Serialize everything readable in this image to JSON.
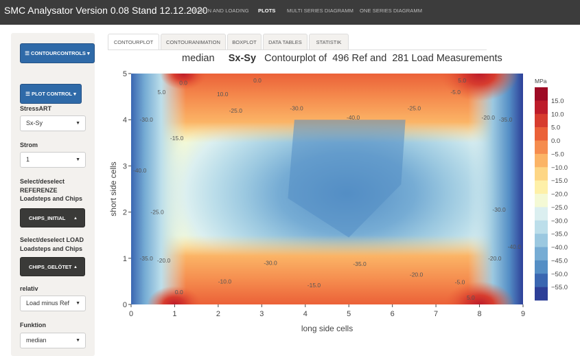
{
  "app": {
    "title": "SMC Analysator Version 0.08 Stand 12.12.2020",
    "nav": [
      "READ IN AND LOADING",
      "PLOTS",
      "MULTI SERIES DIAGRAMM",
      "ONE SERIES DIAGRAMM"
    ],
    "active_nav": "PLOTS"
  },
  "sidebar": {
    "contour_controls_label": "CONTOURCONTROLS",
    "plot_control_label": "PLOT CONTROL",
    "stressart_label": "StressART",
    "stressart_value": "Sx-Sy",
    "strom_label": "Strom",
    "strom_value": "1",
    "ref_label_1": "Select/deselect",
    "ref_label_2": "REFERENZE",
    "ref_label_3": "Loadsteps and Chips",
    "chips_initial_label": "CHIPS_INITIAL",
    "load_label_1": "Select/deselect LOAD",
    "load_label_2": "Loadsteps and Chips",
    "chips_geloetet_label": "CHIPS_GELÖTET",
    "relativ_label": "relativ",
    "relativ_value": "Load minus Ref",
    "funktion_label": "Funktion",
    "funktion_value": "median"
  },
  "tabs": [
    "CONTOURPLOT",
    "CONTOURANIMATION",
    "BOXPLOT",
    "DATA TABLES",
    "STATISTIK"
  ],
  "active_tab": "CONTOURPLOT",
  "plot": {
    "title_pre": "median",
    "title_bold": "Sx-Sy",
    "title_post": "Contourplot of  496 Ref and  281 Load Measurements"
  },
  "chart_data": {
    "type": "heatmap",
    "subtype": "contour",
    "title": "median   Sx-Sy   Contourplot of  496 Ref and  281 Load Measurements",
    "xlabel": "long side cells",
    "ylabel": "short side cells",
    "xlim": [
      0,
      9
    ],
    "ylim": [
      0,
      5
    ],
    "x_ticks": [
      0,
      1,
      2,
      3,
      4,
      5,
      6,
      7,
      8,
      9
    ],
    "y_ticks": [
      0,
      1,
      2,
      3,
      4,
      5
    ],
    "colorbar": {
      "unit": "MPa",
      "ticks": [
        15,
        10,
        5,
        0,
        -5,
        -10,
        -15,
        -20,
        -25,
        -30,
        -35,
        -40,
        -45,
        -50,
        -55
      ],
      "tick_labels": [
        "15.0",
        "10.0",
        "5.0",
        "0.0",
        "−5.0",
        "−10.0",
        "−15.0",
        "−20.0",
        "−25.0",
        "−30.0",
        "−35.0",
        "−40.0",
        "−45.0",
        "−50.0",
        "−55.0"
      ],
      "levels": [
        {
          "from": 15,
          "to": 20,
          "color": "#9e0b25"
        },
        {
          "from": 10,
          "to": 15,
          "color": "#bd1c2a"
        },
        {
          "from": 5,
          "to": 10,
          "color": "#d73c2e"
        },
        {
          "from": 0,
          "to": 5,
          "color": "#eb6138"
        },
        {
          "from": -5,
          "to": 0,
          "color": "#f58c4e"
        },
        {
          "from": -10,
          "to": -5,
          "color": "#fbb466"
        },
        {
          "from": -15,
          "to": -10,
          "color": "#fdd685"
        },
        {
          "from": -20,
          "to": -15,
          "color": "#fef0a8"
        },
        {
          "from": -25,
          "to": -20,
          "color": "#f4f9d5"
        },
        {
          "from": -30,
          "to": -25,
          "color": "#dbeff0"
        },
        {
          "from": -35,
          "to": -30,
          "color": "#bcdeea"
        },
        {
          "from": -40,
          "to": -35,
          "color": "#9bc8e0"
        },
        {
          "from": -45,
          "to": -40,
          "color": "#76acd4"
        },
        {
          "from": -50,
          "to": -45,
          "color": "#548ec5"
        },
        {
          "from": -55,
          "to": -50,
          "color": "#3a66b1"
        },
        {
          "from": -60,
          "to": -55,
          "color": "#2d3f98"
        }
      ]
    },
    "contour_labels": [
      {
        "text": "0.0",
        "x": 1.2,
        "y": 4.8
      },
      {
        "text": "5.0",
        "x": 0.7,
        "y": 4.6
      },
      {
        "text": "10.0",
        "x": 2.1,
        "y": 4.55
      },
      {
        "text": "0.0",
        "x": 2.9,
        "y": 4.85
      },
      {
        "text": "-5.0",
        "x": 7.45,
        "y": 4.6
      },
      {
        "text": "5.0",
        "x": 7.6,
        "y": 4.85
      },
      {
        "text": "-25.0",
        "x": 2.4,
        "y": 4.2
      },
      {
        "text": "-30.0",
        "x": 3.8,
        "y": 4.25
      },
      {
        "text": "-25.0",
        "x": 6.5,
        "y": 4.25
      },
      {
        "text": "-40.0",
        "x": 5.1,
        "y": 4.05
      },
      {
        "text": "-20.0",
        "x": 8.2,
        "y": 4.05
      },
      {
        "text": "-30.0",
        "x": 0.35,
        "y": 4.0
      },
      {
        "text": "-35.0",
        "x": 8.6,
        "y": 4.0
      },
      {
        "text": "-15.0",
        "x": 1.05,
        "y": 3.6
      },
      {
        "text": "-40.0",
        "x": 0.2,
        "y": 2.9
      },
      {
        "text": "-25.0",
        "x": 0.6,
        "y": 2.0
      },
      {
        "text": "-30.0",
        "x": 8.45,
        "y": 2.05
      },
      {
        "text": "-35.0",
        "x": 0.35,
        "y": 1.0
      },
      {
        "text": "-20.0",
        "x": 0.75,
        "y": 0.95
      },
      {
        "text": "-40.0",
        "x": 8.8,
        "y": 1.25
      },
      {
        "text": "-20.0",
        "x": 8.35,
        "y": 1.0
      },
      {
        "text": "-30.0",
        "x": 3.2,
        "y": 0.9
      },
      {
        "text": "-35.0",
        "x": 5.25,
        "y": 0.88
      },
      {
        "text": "-20.0",
        "x": 6.55,
        "y": 0.65
      },
      {
        "text": "-10.0",
        "x": 2.15,
        "y": 0.5
      },
      {
        "text": "-15.0",
        "x": 4.2,
        "y": 0.42
      },
      {
        "text": "-5.0",
        "x": 7.55,
        "y": 0.48
      },
      {
        "text": "0.0",
        "x": 1.1,
        "y": 0.27
      },
      {
        "text": "5.0",
        "x": 7.8,
        "y": 0.15
      }
    ]
  }
}
